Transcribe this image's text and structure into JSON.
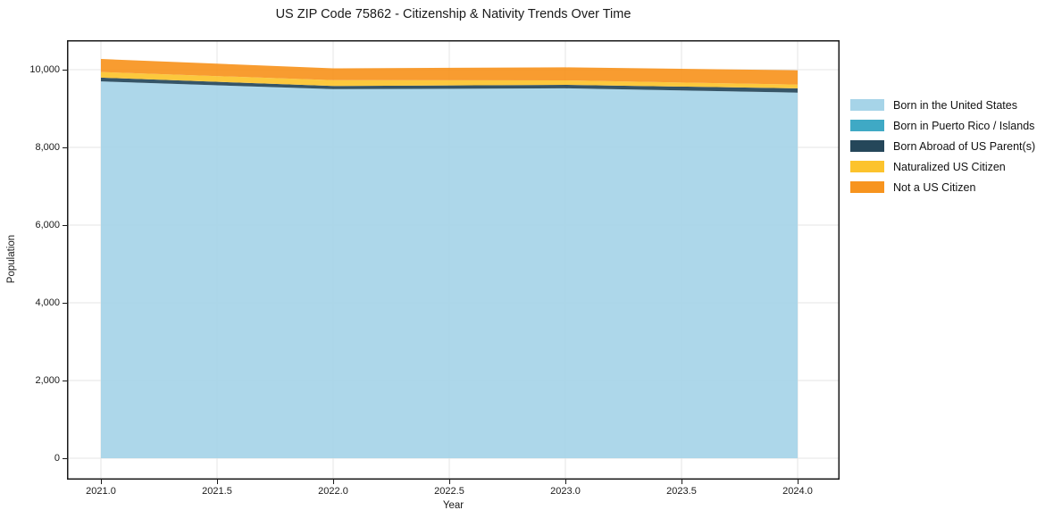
{
  "title": "US ZIP Code 75862 - Citizenship & Nativity Trends Over Time",
  "chart_data": {
    "type": "area",
    "stacked": true,
    "title": "US ZIP Code 75862 - Citizenship & Nativity Trends Over Time",
    "xlabel": "Year",
    "ylabel": "Population",
    "x": [
      2021,
      2022,
      2023,
      2024
    ],
    "series": [
      {
        "name": "Born in the United States",
        "color": "#a6d4e8",
        "values": [
          9700,
          9500,
          9520,
          9410
        ]
      },
      {
        "name": "Born in Puerto Rico / Islands",
        "color": "#3fa9c5",
        "values": [
          0,
          0,
          0,
          0
        ]
      },
      {
        "name": "Born Abroad of US Parent(s)",
        "color": "#25475a",
        "values": [
          95,
          80,
          90,
          110
        ]
      },
      {
        "name": "Naturalized US Citizen",
        "color": "#fcc32d",
        "values": [
          145,
          150,
          115,
          95
        ]
      },
      {
        "name": "Not a US Citizen",
        "color": "#f7941e",
        "values": [
          335,
          305,
          335,
          370
        ]
      }
    ],
    "totals_by_year": [
      10275,
      10035,
      10060,
      9985
    ],
    "x_ticks": [
      {
        "value": 2021.0,
        "label": "2021.0"
      },
      {
        "value": 2021.5,
        "label": "2021.5"
      },
      {
        "value": 2022.0,
        "label": "2022.0"
      },
      {
        "value": 2022.5,
        "label": "2022.5"
      },
      {
        "value": 2023.0,
        "label": "2023.0"
      },
      {
        "value": 2023.5,
        "label": "2023.5"
      },
      {
        "value": 2024.0,
        "label": "2024.0"
      }
    ],
    "y_ticks": [
      {
        "value": 0,
        "label": "0"
      },
      {
        "value": 2000,
        "label": "2,000"
      },
      {
        "value": 4000,
        "label": "4,000"
      },
      {
        "value": 6000,
        "label": "6,000"
      },
      {
        "value": 8000,
        "label": "8,000"
      },
      {
        "value": 10000,
        "label": "10,000"
      }
    ],
    "xlim": [
      2020.85,
      2024.18
    ],
    "ylim": [
      -550,
      10760
    ],
    "grid": true,
    "grid_color": "#e4e4e4",
    "frame_color": "#1a1a1a",
    "legend_position": "right-outside"
  }
}
